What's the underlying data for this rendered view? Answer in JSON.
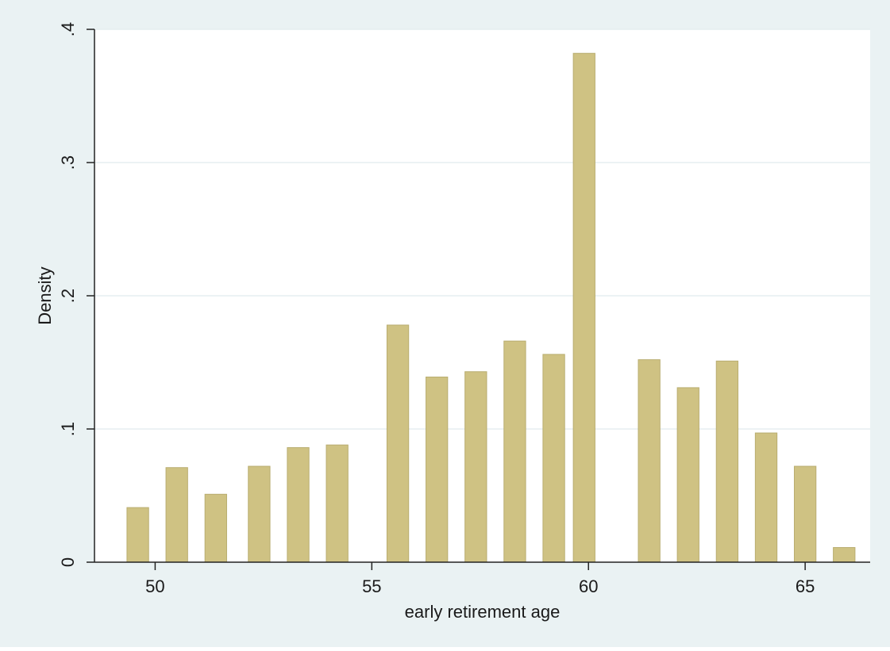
{
  "colors": {
    "outer_background": "#eaf2f3",
    "plot_background": "#ffffff",
    "bar_fill": "#cfc283",
    "bar_stroke": "#b9ad70",
    "gridline": "#e5eef0",
    "axis": "#222222"
  },
  "chart_data": {
    "type": "bar",
    "title": "",
    "xlabel": "early retirement age",
    "ylabel": "Density",
    "xlim": [
      48.6,
      66.5
    ],
    "ylim": [
      0,
      0.4
    ],
    "x_ticks": [
      50,
      55,
      60,
      65
    ],
    "x_tick_labels": [
      "50",
      "55",
      "60",
      "65"
    ],
    "y_ticks": [
      0,
      0.1,
      0.2,
      0.3,
      0.4
    ],
    "y_tick_labels": [
      "0",
      ".1",
      ".2",
      ".3",
      ".4"
    ],
    "grid": true,
    "bar_width": 0.5,
    "bars": [
      {
        "x": 49.6,
        "value": 0.041
      },
      {
        "x": 50.5,
        "value": 0.071
      },
      {
        "x": 51.4,
        "value": 0.051
      },
      {
        "x": 52.4,
        "value": 0.072
      },
      {
        "x": 53.3,
        "value": 0.086
      },
      {
        "x": 54.2,
        "value": 0.088
      },
      {
        "x": 55.6,
        "value": 0.178
      },
      {
        "x": 56.5,
        "value": 0.139
      },
      {
        "x": 57.4,
        "value": 0.143
      },
      {
        "x": 58.3,
        "value": 0.166
      },
      {
        "x": 59.2,
        "value": 0.156
      },
      {
        "x": 59.9,
        "value": 0.382
      },
      {
        "x": 61.4,
        "value": 0.152
      },
      {
        "x": 62.3,
        "value": 0.131
      },
      {
        "x": 63.2,
        "value": 0.151
      },
      {
        "x": 64.1,
        "value": 0.097
      },
      {
        "x": 65.0,
        "value": 0.072
      },
      {
        "x": 65.9,
        "value": 0.011
      }
    ]
  }
}
